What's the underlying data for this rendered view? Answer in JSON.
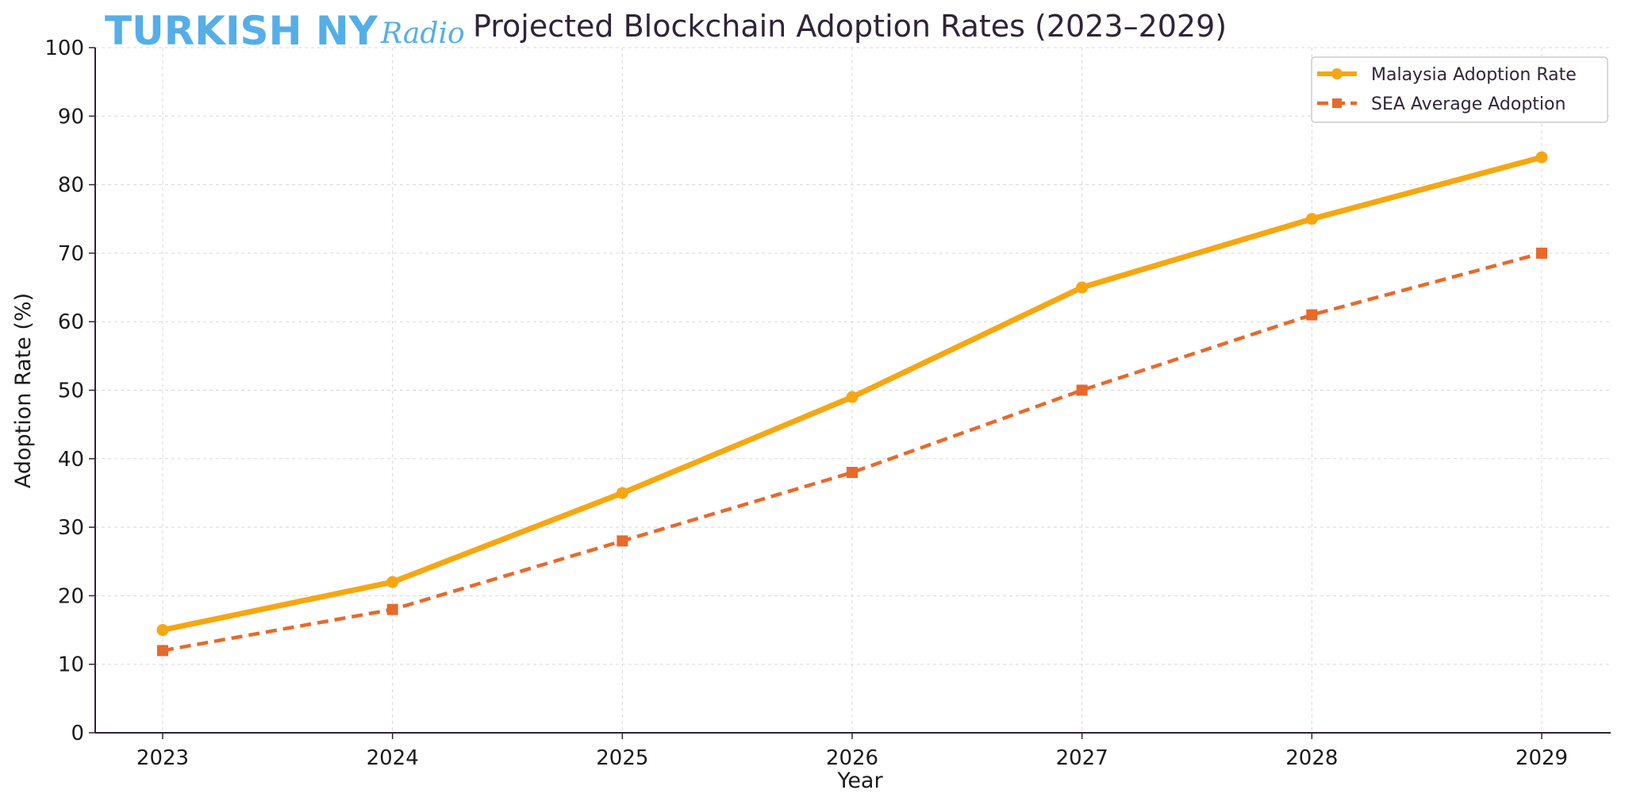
{
  "logo": {
    "main": "TURKISH NY",
    "script": "Radio"
  },
  "colors": {
    "logo": "#55aee8",
    "title": "#2f2438",
    "text": "#1a1a1a",
    "grid": "#d8d8d8",
    "axis": "#2f2438",
    "legend_border": "#cccccc"
  },
  "chart_data": {
    "type": "line",
    "title": "Projected Blockchain Adoption Rates (2023–2029)",
    "xlabel": "Year",
    "ylabel": "Adoption Rate (%)",
    "x": [
      "2023",
      "2024",
      "2025",
      "2026",
      "2027",
      "2028",
      "2029"
    ],
    "ylim": [
      0,
      100
    ],
    "yticks": [
      0,
      10,
      20,
      30,
      40,
      50,
      60,
      70,
      80,
      90,
      100
    ],
    "grid": true,
    "legend_position": "top-right",
    "series": [
      {
        "name": "Malaysia Adoption Rate",
        "values": [
          15,
          22,
          35,
          49,
          65,
          75,
          84
        ],
        "color": "#f5a712",
        "style": "solid",
        "marker": "circle"
      },
      {
        "name": "SEA Average Adoption",
        "values": [
          12,
          18,
          28,
          38,
          50,
          61,
          70
        ],
        "color": "#e8692a",
        "style": "dashed",
        "marker": "square"
      }
    ]
  }
}
